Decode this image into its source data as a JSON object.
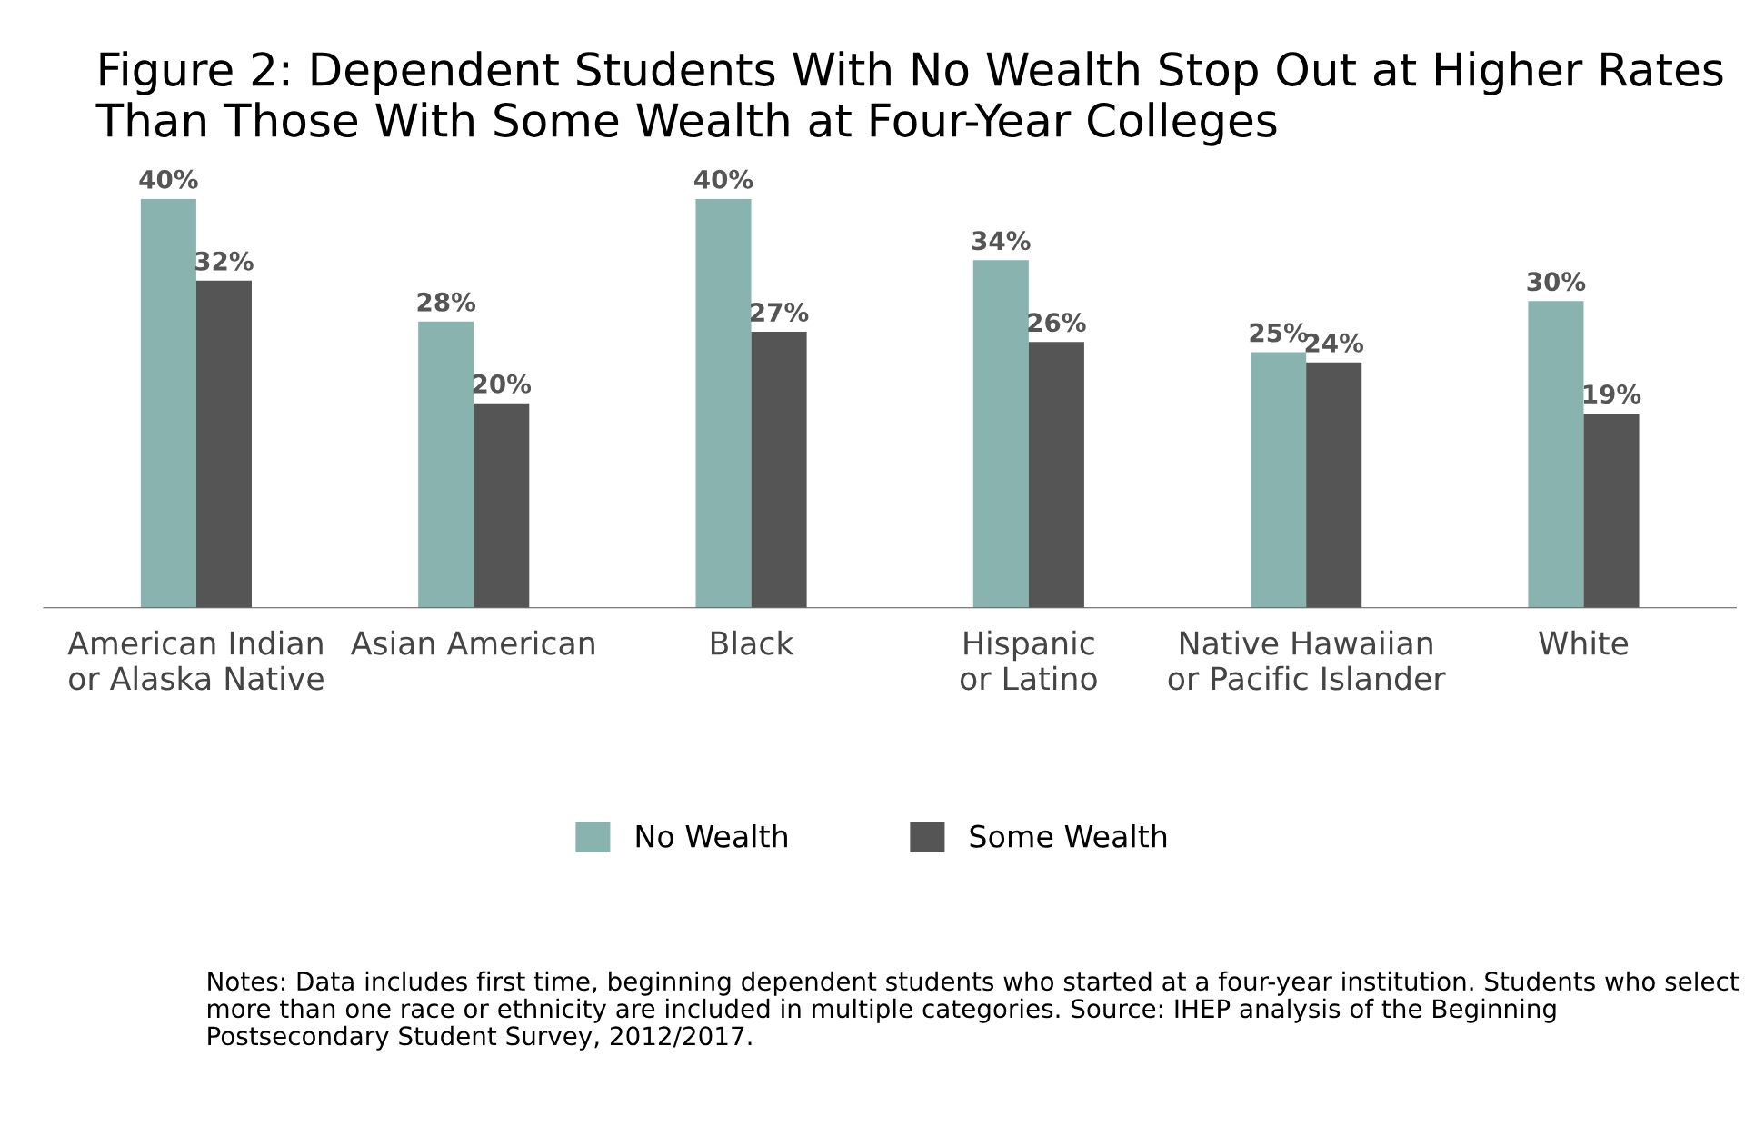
{
  "chart_data": {
    "type": "bar",
    "title": "Figure 2: Dependent Students With No Wealth Stop Out at Higher Rates Than Those With Some Wealth at Four-Year Colleges",
    "categories": [
      "American Indian\nor Alaska Native",
      "Asian American",
      "Black",
      "Hispanic\nor Latino",
      "Native Hawaiian\nor Pacific Islander",
      "White"
    ],
    "series": [
      {
        "name": "No Wealth",
        "color": "#88b3af",
        "values": [
          40,
          28,
          40,
          34,
          25,
          30
        ],
        "value_labels": [
          "40%",
          "28%",
          "40%",
          "34%",
          "25%",
          "30%"
        ]
      },
      {
        "name": "Some Wealth",
        "color": "#555555",
        "values": [
          32,
          20,
          27,
          26,
          24,
          19
        ],
        "value_labels": [
          "32%",
          "20%",
          "27%",
          "26%",
          "24%",
          "19%"
        ]
      }
    ],
    "legend": "bottom",
    "grid": false,
    "tick_labels": "x",
    "annotations": [
      "Notes: Data includes first time, beginning dependent students who started at a four-year institution. Students who select more than one race or ethnicity are included in multiple categories. Source: IHEP analysis of the Beginning Postsecondary Student Survey, 2012/2017."
    ]
  }
}
